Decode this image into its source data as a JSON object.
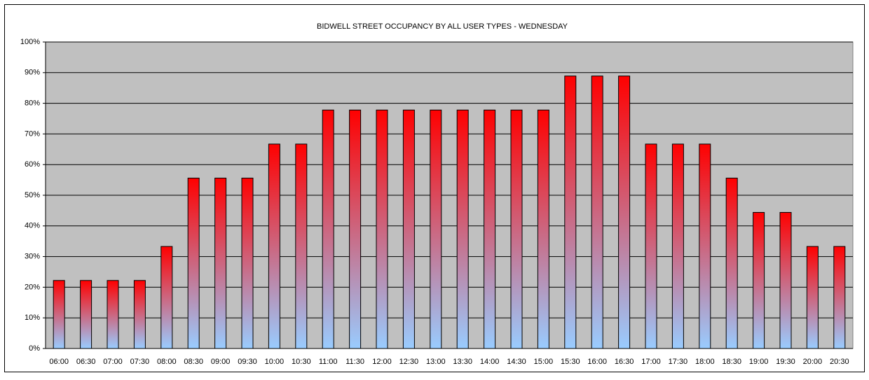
{
  "chart_data": {
    "type": "bar",
    "title": "BIDWELL STREET OCCUPANCY BY ALL USER TYPES  - WEDNESDAY",
    "categories": [
      "06:00",
      "06:30",
      "07:00",
      "07:30",
      "08:00",
      "08:30",
      "09:00",
      "09:30",
      "10:00",
      "10:30",
      "11:00",
      "11:30",
      "12:00",
      "12:30",
      "13:00",
      "13:30",
      "14:00",
      "14:30",
      "15:00",
      "15:30",
      "16:00",
      "16:30",
      "17:00",
      "17:30",
      "18:00",
      "18:30",
      "19:00",
      "19:30",
      "20:00",
      "20:30"
    ],
    "values": [
      22.2,
      22.2,
      22.2,
      22.2,
      33.3,
      55.6,
      55.6,
      55.6,
      66.7,
      66.7,
      77.8,
      77.8,
      77.8,
      77.8,
      77.8,
      77.8,
      77.8,
      77.8,
      77.8,
      88.9,
      88.9,
      88.9,
      66.7,
      66.7,
      66.7,
      55.6,
      44.4,
      44.4,
      33.3,
      33.3
    ],
    "color_top": "#ff0000",
    "color_bottom": "#99ccff",
    "plot_background": "#c0c0c0",
    "ylim": [
      0,
      100
    ],
    "yticks": [
      {
        "value": 0,
        "label": "0%"
      },
      {
        "value": 10,
        "label": "10%"
      },
      {
        "value": 20,
        "label": "20%"
      },
      {
        "value": 30,
        "label": "30%"
      },
      {
        "value": 40,
        "label": "40%"
      },
      {
        "value": 50,
        "label": "50%"
      },
      {
        "value": 60,
        "label": "60%"
      },
      {
        "value": 70,
        "label": "70%"
      },
      {
        "value": 80,
        "label": "80%"
      },
      {
        "value": 90,
        "label": "90%"
      },
      {
        "value": 100,
        "label": "100%"
      }
    ],
    "grid": true
  }
}
